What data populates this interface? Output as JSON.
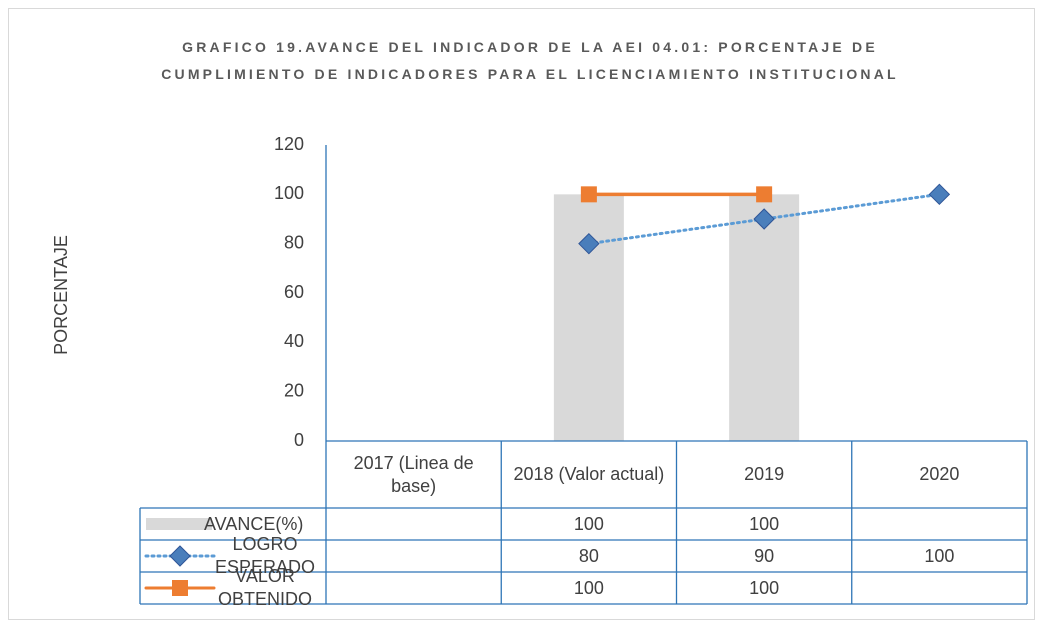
{
  "chart_data": {
    "type": "bar",
    "title": "GRAFICO 19.AVANCE DEL INDICADOR  DE LA AEI 04.01: PORCENTAJE DE CUMPLIMIENTO DE INDICADORES PARA EL LICENCIAMIENTO INSTITUCIONAL",
    "y_label": "PORCENTAJE",
    "categories": [
      "2017 (Linea de base)",
      "2018 (Valor actual)",
      "2019",
      "2020"
    ],
    "series": [
      {
        "name": "AVANCE(%)",
        "type": "bar",
        "color": "#d9d9d9",
        "values": [
          null,
          100,
          100,
          null
        ]
      },
      {
        "name": "LOGRO ESPERADO",
        "type": "line",
        "line_style": "dotted",
        "marker": "diamond",
        "color": "#5b9bd5",
        "values": [
          null,
          80,
          90,
          100
        ]
      },
      {
        "name": "VALOR OBTENIDO",
        "type": "line",
        "line_style": "solid",
        "marker": "square",
        "color": "#ed7d31",
        "values": [
          null,
          100,
          100,
          null
        ]
      }
    ],
    "ylim": [
      0,
      120
    ],
    "yticks": [
      0,
      20,
      40,
      60,
      80,
      100,
      120
    ],
    "grid": false,
    "data_table": true
  }
}
